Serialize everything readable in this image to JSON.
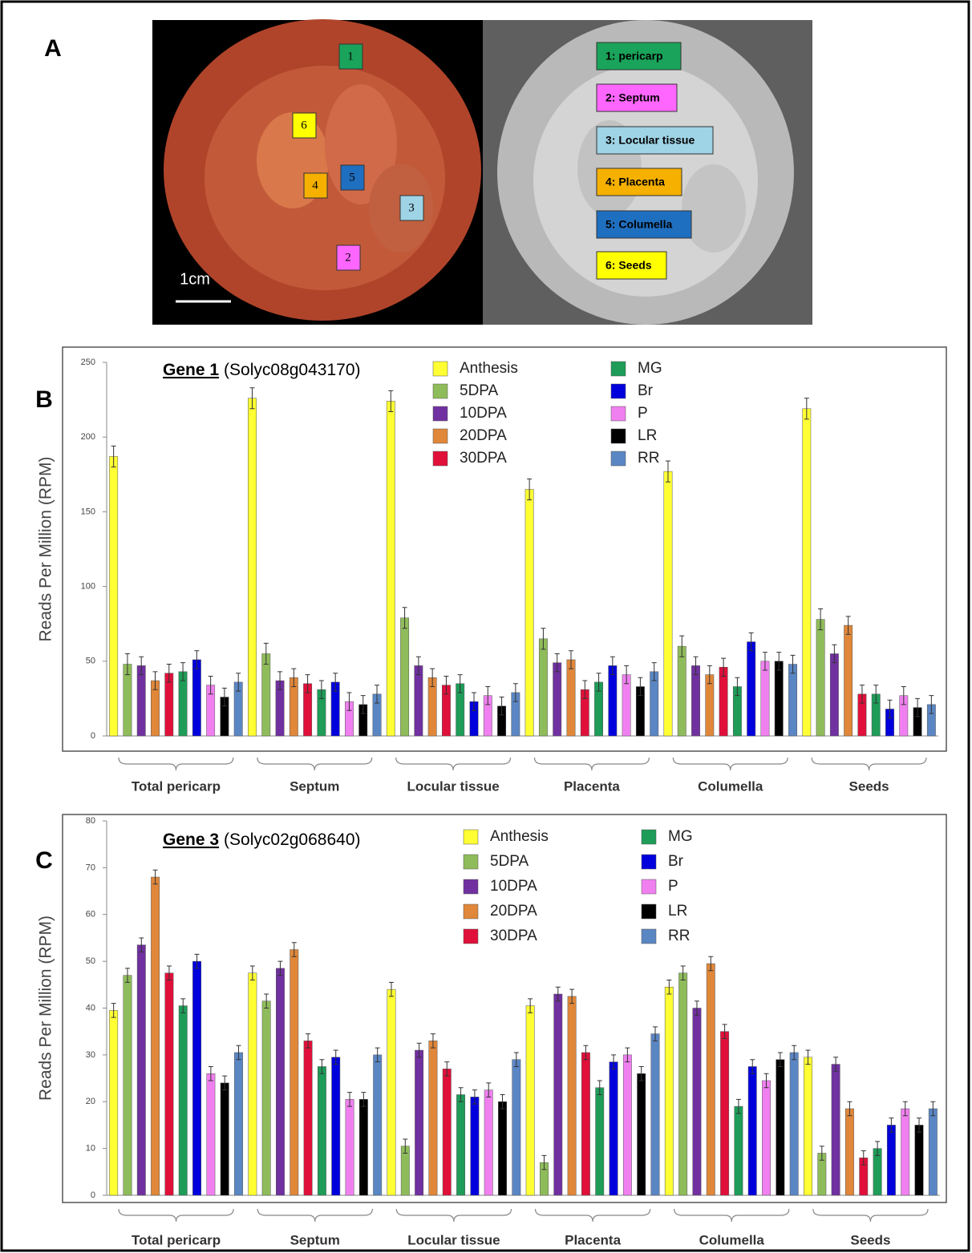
{
  "panel_a": {
    "panel_label": "A",
    "scale_bar": "1cm",
    "markers": [
      "1",
      "6",
      "4",
      "5",
      "3",
      "2"
    ],
    "legend": [
      "1: pericarp",
      "2: Septum",
      "3: Locular tissue",
      "4: Placenta",
      "5: Columella",
      "6: Seeds"
    ]
  },
  "chart_data": [
    {
      "type": "bar",
      "panel_label": "B",
      "title": "Gene 1",
      "subtitle": "(Solyc08g043170)",
      "y_label": "Reads Per Million (RPM)",
      "categories": [
        "Total pericarp",
        "Septum",
        "Locular tissue",
        "Placenta",
        "Columella",
        "Seeds"
      ],
      "ylim": [
        0,
        250
      ],
      "yticks": [
        0,
        50,
        100,
        150,
        200,
        250
      ],
      "series": [
        {
          "name": "Anthesis",
          "color": "#ffff33",
          "values": [
            187,
            226,
            224,
            165,
            177,
            219
          ],
          "errors": [
            7,
            7,
            7,
            7,
            7,
            7
          ]
        },
        {
          "name": "5DPA",
          "color": "#8fbc5a",
          "values": [
            48,
            55,
            79,
            65,
            60,
            78
          ],
          "errors": [
            7,
            7,
            7,
            7,
            7,
            7
          ]
        },
        {
          "name": "10DPA",
          "color": "#7030a0",
          "values": [
            47,
            37,
            47,
            49,
            47,
            55
          ],
          "errors": [
            6,
            6,
            6,
            6,
            6,
            6
          ]
        },
        {
          "name": "20DPA",
          "color": "#e0873a",
          "values": [
            37,
            39,
            39,
            51,
            41,
            74
          ],
          "errors": [
            6,
            6,
            6,
            6,
            6,
            6
          ]
        },
        {
          "name": "30DPA",
          "color": "#e0103a",
          "values": [
            42,
            35,
            34,
            31,
            46,
            28
          ],
          "errors": [
            6,
            6,
            6,
            6,
            6,
            6
          ]
        },
        {
          "name": "MG",
          "color": "#1e9c58",
          "values": [
            43,
            31,
            35,
            36,
            33,
            28
          ],
          "errors": [
            6,
            6,
            6,
            6,
            6,
            6
          ]
        },
        {
          "name": "Br",
          "color": "#0000dd",
          "values": [
            51,
            36,
            23,
            47,
            63,
            18
          ],
          "errors": [
            6,
            6,
            6,
            6,
            6,
            6
          ]
        },
        {
          "name": "P",
          "color": "#f080f0",
          "values": [
            34,
            23,
            27,
            41,
            50,
            27
          ],
          "errors": [
            6,
            6,
            6,
            6,
            6,
            6
          ]
        },
        {
          "name": "LR",
          "color": "#000000",
          "values": [
            26,
            21,
            20,
            33,
            50,
            19
          ],
          "errors": [
            6,
            6,
            6,
            6,
            6,
            6
          ]
        },
        {
          "name": "RR",
          "color": "#5b86c4",
          "values": [
            36,
            28,
            29,
            43,
            48,
            21
          ],
          "errors": [
            6,
            6,
            6,
            6,
            6,
            6
          ]
        }
      ]
    },
    {
      "type": "bar",
      "panel_label": "C",
      "title": "Gene 3",
      "subtitle": "(Solyc02g068640)",
      "y_label": "Reads Per Million (RPM)",
      "categories": [
        "Total pericarp",
        "Septum",
        "Locular tissue",
        "Placenta",
        "Columella",
        "Seeds"
      ],
      "ylim": [
        0,
        80
      ],
      "yticks": [
        0,
        10,
        20,
        30,
        40,
        50,
        60,
        70,
        80
      ],
      "series": [
        {
          "name": "Anthesis",
          "color": "#ffff33",
          "values": [
            39.5,
            47.5,
            44,
            40.5,
            44.5,
            29.5
          ],
          "errors": [
            1.5,
            1.5,
            1.5,
            1.5,
            1.5,
            1.5
          ]
        },
        {
          "name": "5DPA",
          "color": "#8fbc5a",
          "values": [
            47,
            41.5,
            10.5,
            7,
            47.5,
            9
          ],
          "errors": [
            1.5,
            1.5,
            1.5,
            1.5,
            1.5,
            1.5
          ]
        },
        {
          "name": "10DPA",
          "color": "#7030a0",
          "values": [
            53.5,
            48.5,
            31,
            43,
            40,
            28
          ],
          "errors": [
            1.5,
            1.5,
            1.5,
            1.5,
            1.5,
            1.5
          ]
        },
        {
          "name": "20DPA",
          "color": "#e0873a",
          "values": [
            68,
            52.5,
            33,
            42.5,
            49.5,
            18.5
          ],
          "errors": [
            1.5,
            1.5,
            1.5,
            1.5,
            1.5,
            1.5
          ]
        },
        {
          "name": "30DPA",
          "color": "#e0103a",
          "values": [
            47.5,
            33,
            27,
            30.5,
            35,
            8
          ],
          "errors": [
            1.5,
            1.5,
            1.5,
            1.5,
            1.5,
            1.5
          ]
        },
        {
          "name": "MG",
          "color": "#1e9c58",
          "values": [
            40.5,
            27.5,
            21.5,
            23,
            19,
            10
          ],
          "errors": [
            1.5,
            1.5,
            1.5,
            1.5,
            1.5,
            1.5
          ]
        },
        {
          "name": "Br",
          "color": "#0000dd",
          "values": [
            50,
            29.5,
            21,
            28.5,
            27.5,
            15
          ],
          "errors": [
            1.5,
            1.5,
            1.5,
            1.5,
            1.5,
            1.5
          ]
        },
        {
          "name": "P",
          "color": "#f080f0",
          "values": [
            26,
            20.5,
            22.5,
            30,
            24.5,
            18.5
          ],
          "errors": [
            1.5,
            1.5,
            1.5,
            1.5,
            1.5,
            1.5
          ]
        },
        {
          "name": "LR",
          "color": "#000000",
          "values": [
            24,
            20.5,
            20,
            26,
            29,
            15
          ],
          "errors": [
            1.5,
            1.5,
            1.5,
            1.5,
            1.5,
            1.5
          ]
        },
        {
          "name": "RR",
          "color": "#5b86c4",
          "values": [
            30.5,
            30,
            29,
            34.5,
            30.5,
            18.5
          ],
          "errors": [
            1.5,
            1.5,
            1.5,
            1.5,
            1.5,
            1.5
          ]
        }
      ]
    }
  ]
}
